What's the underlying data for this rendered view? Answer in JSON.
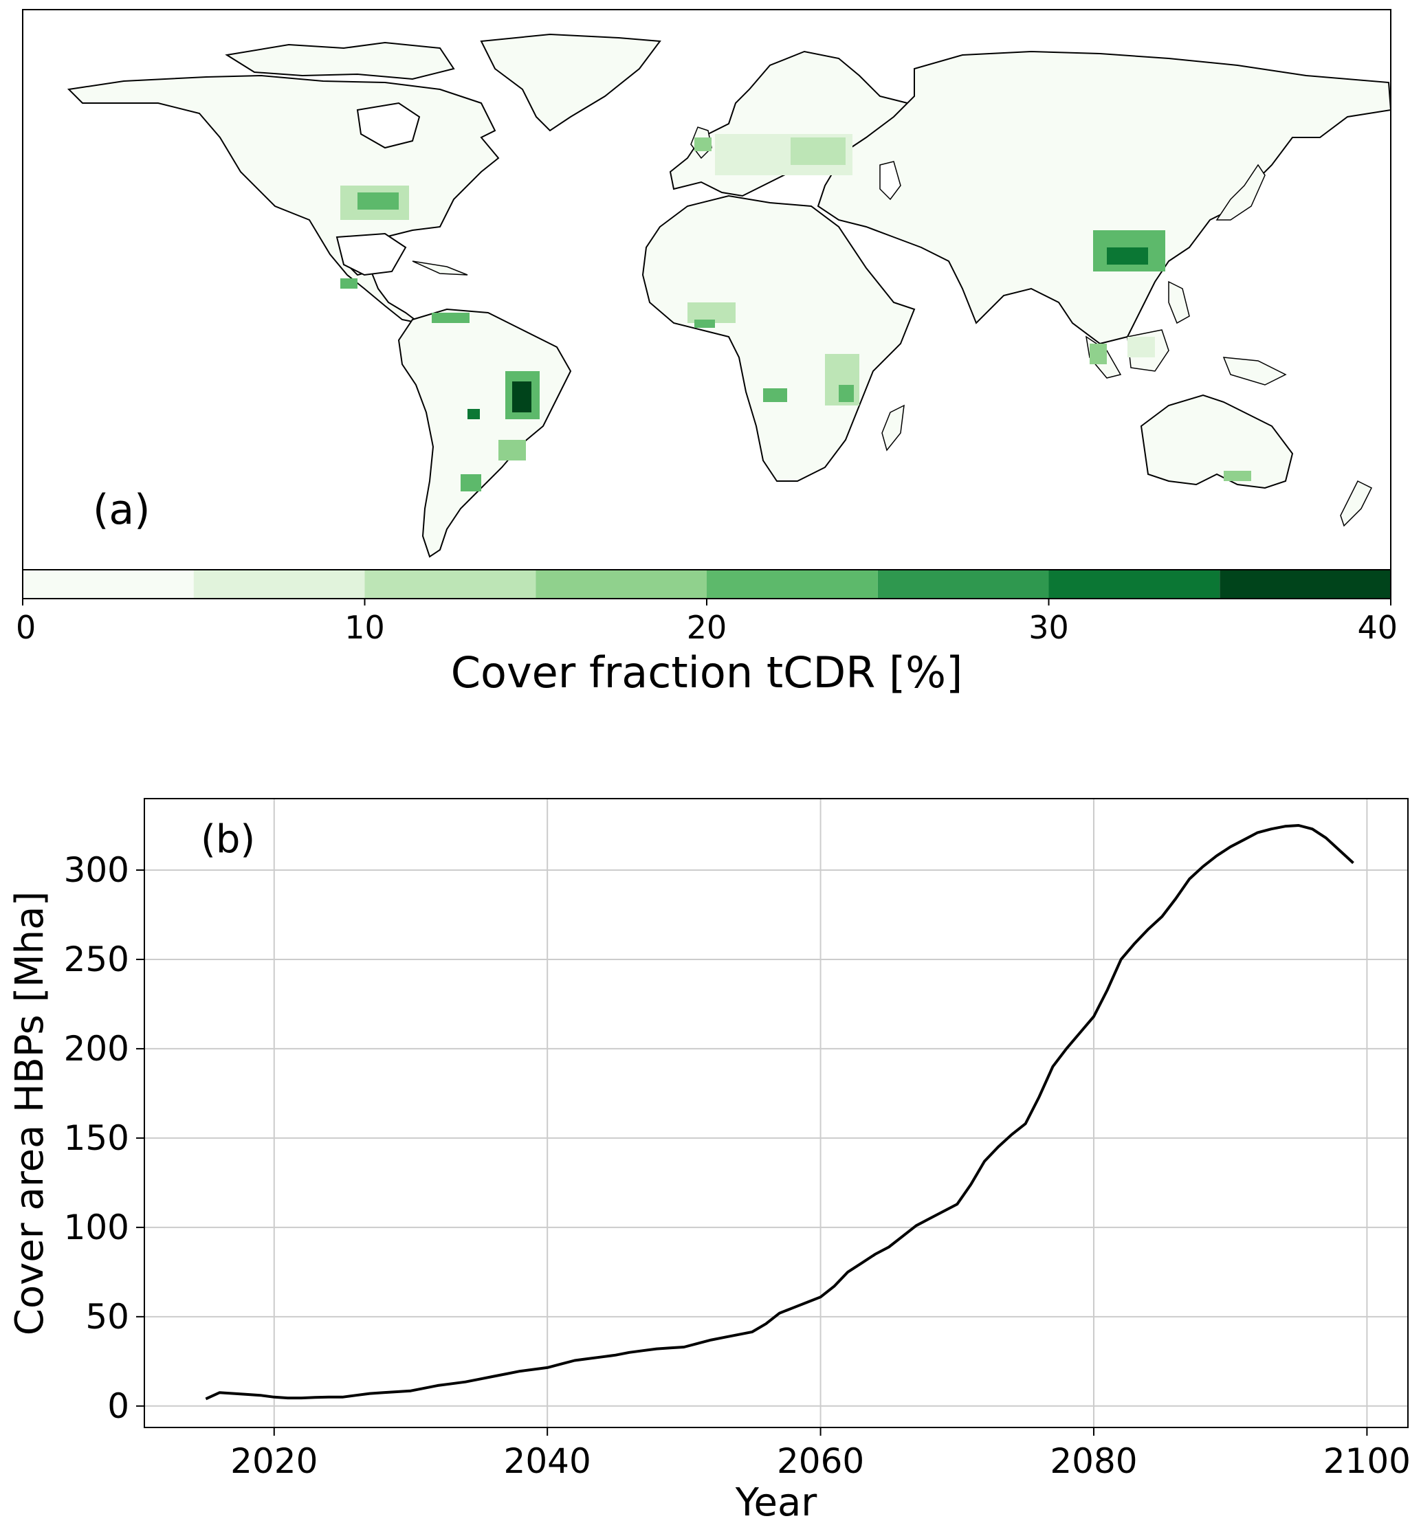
{
  "chart_data": [
    {
      "type": "heatmap",
      "panel_label": "(a)",
      "map": "world land cover fraction",
      "colorbar": {
        "label": "Cover fraction tCDR [%]",
        "ticks": [
          "0",
          "10",
          "20",
          "30",
          "40"
        ],
        "range": [
          0,
          40
        ],
        "bins": [
          0,
          5,
          10,
          15,
          20,
          25,
          30,
          35,
          40
        ],
        "colors": [
          "#f7fcf5",
          "#e1f3dc",
          "#bde5b6",
          "#90d18d",
          "#5db96b",
          "#2f984f",
          "#0b7734",
          "#00441b"
        ]
      },
      "hotspots": [
        {
          "region": "Central Brazil",
          "value": 35
        },
        {
          "region": "Southeast China",
          "value": 30
        },
        {
          "region": "Eastern United States",
          "value": 20
        },
        {
          "region": "Mozambique / Eastern Africa",
          "value": 20
        },
        {
          "region": "Northern South America",
          "value": 20
        },
        {
          "region": "Eastern Europe",
          "value": 15
        },
        {
          "region": "West Africa",
          "value": 15
        },
        {
          "region": "Southern Brazil",
          "value": 20
        },
        {
          "region": "Southeast Asia",
          "value": 15
        }
      ],
      "colors": {
        "land": "#f7fcf5",
        "ocean": "#ffffff",
        "coast": "#000000"
      }
    },
    {
      "type": "line",
      "panel_label": "(b)",
      "xlabel": "Year",
      "ylabel": "Cover area HBPs [Mha]",
      "xlim": [
        2010.5,
        2103
      ],
      "ylim": [
        -12,
        340
      ],
      "xticks": [
        "2020",
        "2040",
        "2060",
        "2080",
        "2100"
      ],
      "yticks": [
        "0",
        "50",
        "100",
        "150",
        "200",
        "250",
        "300"
      ],
      "grid": true,
      "line_color": "#000000",
      "grid_color": "#cccccc",
      "x": [
        2015,
        2016,
        2018,
        2019,
        2020,
        2021,
        2022,
        2023,
        2024,
        2025,
        2026,
        2027,
        2028,
        2029,
        2030,
        2031,
        2032,
        2033,
        2034,
        2035,
        2036,
        2037,
        2038,
        2039,
        2040,
        2041,
        2042,
        2043,
        2044,
        2045,
        2046,
        2047,
        2048,
        2049,
        2050,
        2051,
        2052,
        2053,
        2054,
        2055,
        2056,
        2057,
        2058,
        2059,
        2060,
        2061,
        2062,
        2063,
        2064,
        2065,
        2066,
        2067,
        2068,
        2069,
        2070,
        2071,
        2072,
        2073,
        2074,
        2075,
        2076,
        2077,
        2078,
        2079,
        2080,
        2081,
        2082,
        2083,
        2084,
        2085,
        2086,
        2087,
        2088,
        2089,
        2090,
        2091,
        2092,
        2093,
        2094,
        2095,
        2096,
        2097,
        2098,
        2099
      ],
      "y": [
        4,
        7.5,
        6.5,
        6,
        5,
        4.5,
        4.5,
        4.8,
        5,
        5,
        6,
        7,
        7.5,
        8,
        8.5,
        10,
        11.5,
        12.5,
        13.5,
        15,
        16.5,
        18,
        19.5,
        20.5,
        21.5,
        23.5,
        25.5,
        26.5,
        27.5,
        28.5,
        30,
        31,
        32,
        32.5,
        33,
        35,
        37,
        38.5,
        40,
        41.5,
        46,
        52,
        55,
        58,
        61,
        67,
        75,
        80,
        85,
        89,
        95,
        101,
        105,
        109,
        113,
        124,
        137,
        145,
        152,
        158,
        173,
        190,
        200,
        209,
        218,
        233,
        250,
        259,
        267,
        274,
        284,
        295,
        302,
        308,
        313,
        317,
        321,
        323,
        324.5,
        325,
        323,
        318,
        311,
        304
      ]
    }
  ]
}
